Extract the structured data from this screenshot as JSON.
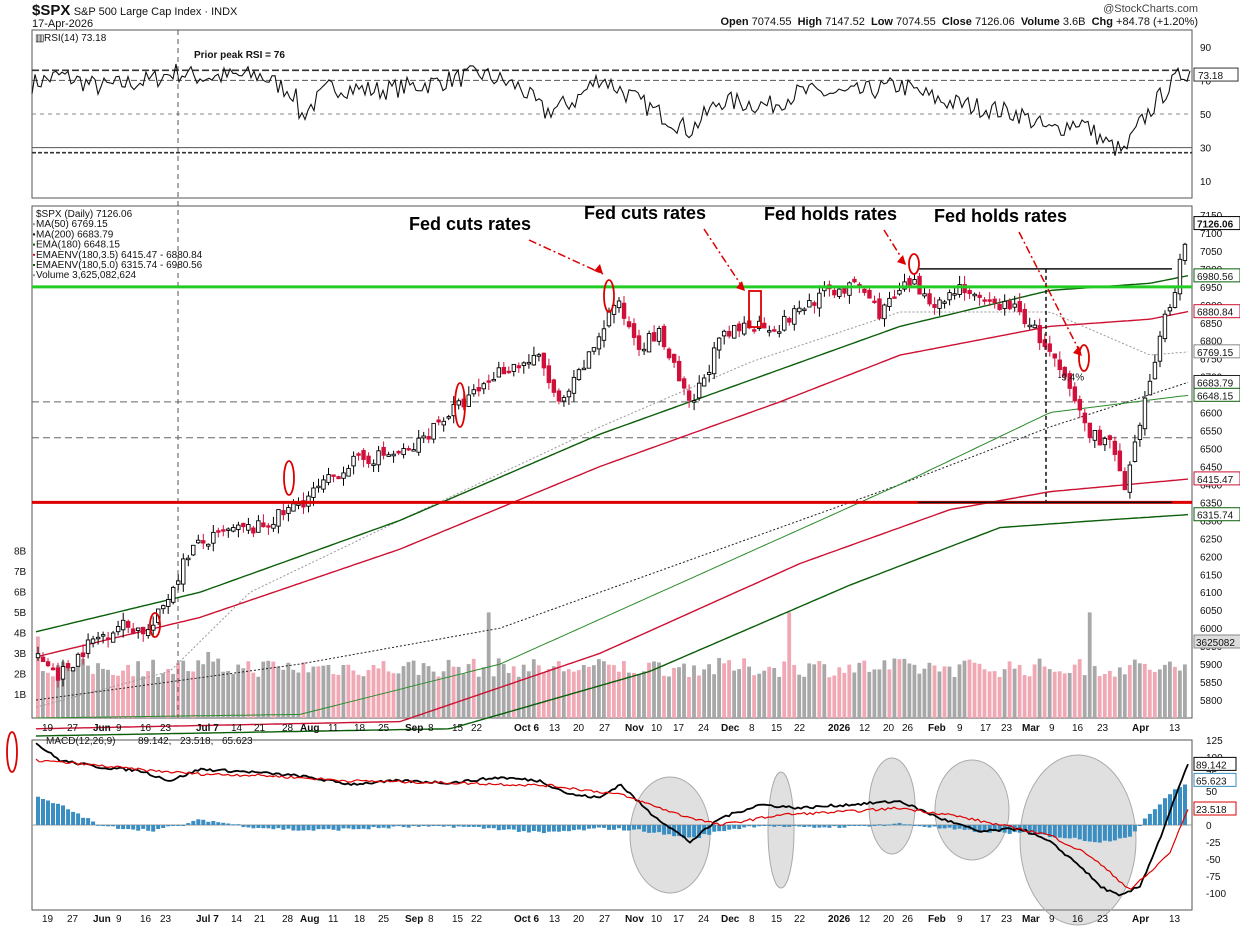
{
  "header": {
    "symbol": "$SPX",
    "name": "S&P 500 Large Cap Index",
    "exchange": "INDX",
    "date": "17-Apr-2026",
    "watermark": "@StockCharts.com",
    "open_label": "Open",
    "open": "7074.55",
    "high_label": "High",
    "high": "7147.52",
    "low_label": "Low",
    "low": "7074.55",
    "close_label": "Close",
    "close": "7126.06",
    "volume_label": "Volume",
    "volume": "3.6B",
    "chg_label": "Chg",
    "chg": "+84.78 (+1.20%)"
  },
  "colors": {
    "up": "#000000",
    "down": "#d0103a",
    "green": "#22cc22",
    "red": "#dd0000",
    "dark_green": "#0a5e0a",
    "env_red": "#cc1133",
    "macd_hist": "#3a8ec2",
    "volume_up": "#a8a8a8",
    "volume_down": "#f0a8b4"
  },
  "chart_data": [
    {
      "type": "line",
      "panel": "RSI",
      "title": "RSI(14) 73.18",
      "annotation": "Prior peak RSI = 76",
      "current_value": "73.18",
      "ylim": [
        0,
        100
      ],
      "y_ticks": [
        10,
        30,
        50,
        70,
        90
      ],
      "reference_lines": [
        30,
        70,
        76,
        27
      ]
    },
    {
      "type": "candlestick",
      "panel": "Price",
      "legend": [
        "$SPX (Daily) 7126.06",
        "MA(50) 6769.15",
        "MA(200) 6683.79",
        "EMA(180) 6648.15",
        "EMAENV(180,3.5) 6415.47 - 6880.84",
        "EMAENV(180,5.0) 6315.74 - 6980.56",
        "Volume 3,625,082,624"
      ],
      "ylim": [
        5750,
        7175
      ],
      "y_ticks": [
        5800,
        5850,
        5900,
        5950,
        6000,
        6050,
        6100,
        6150,
        6200,
        6250,
        6300,
        6350,
        6400,
        6450,
        6500,
        6550,
        6600,
        6650,
        6700,
        6750,
        6800,
        6850,
        6900,
        6950,
        7000,
        7050,
        7100,
        7150
      ],
      "price_flags": [
        "7126.06",
        "6980.56",
        "6880.84",
        "6769.15",
        "6683.79",
        "6648.15",
        "6415.47",
        "6315.74"
      ],
      "horizontal_levels": {
        "green": 6950,
        "red": 6350
      },
      "annotations": [
        "Fed cuts rates",
        "Fed cuts rates",
        "Fed holds rates",
        "Fed holds rates",
        "-9.4%"
      ],
      "volume_axis": [
        "1B",
        "2B",
        "3B",
        "4B",
        "5B",
        "6B",
        "7B",
        "8B"
      ],
      "volume_flag": "3625082"
    },
    {
      "type": "line",
      "panel": "MACD",
      "title": "MACD(12,26,9)",
      "macd": "89.142",
      "signal": "23.518",
      "histogram": "65.623",
      "ylim": [
        -125,
        125
      ],
      "y_ticks": [
        125,
        100,
        75,
        50,
        25,
        0,
        -25,
        -50,
        -75,
        -100
      ],
      "value_flags": [
        "89.142",
        "65.623",
        "23.518"
      ]
    }
  ],
  "x_axis_labels": [
    "19",
    "27",
    "Jun",
    "9",
    "16",
    "23",
    "Jul 7",
    "14",
    "21",
    "28",
    "Aug",
    "11",
    "18",
    "25",
    "Sep",
    "8",
    "15",
    "22",
    "Oct 6",
    "13",
    "20",
    "27",
    "Nov",
    "10",
    "17",
    "24",
    "Dec",
    "8",
    "15",
    "22",
    "2026",
    "12",
    "20",
    "26",
    "Feb",
    "9",
    "17",
    "23",
    "Mar",
    "9",
    "16",
    "23",
    "Apr",
    "13"
  ]
}
